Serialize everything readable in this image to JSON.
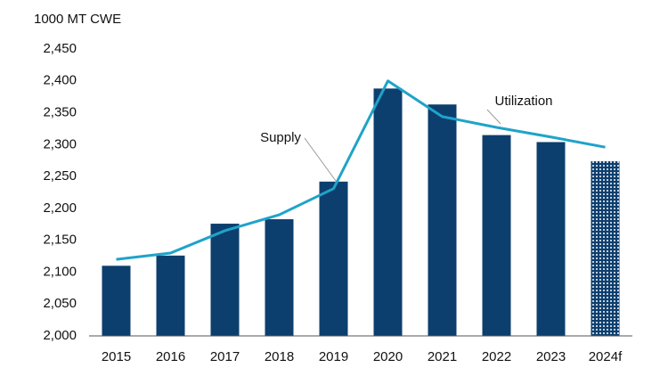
{
  "chart_data": {
    "type": "bar-line",
    "y_label": "1000 MT CWE",
    "categories": [
      "2015",
      "2016",
      "2017",
      "2018",
      "2019",
      "2020",
      "2021",
      "2022",
      "2023",
      "2024f"
    ],
    "series": [
      {
        "name": "Supply",
        "type": "bar",
        "color": "#0d3f6e",
        "values": [
          2110,
          2126,
          2176,
          2183,
          2242,
          2388,
          2363,
          2315,
          2304,
          2274
        ],
        "patterned": [
          false,
          false,
          false,
          false,
          false,
          false,
          false,
          false,
          false,
          true
        ]
      },
      {
        "name": "Utilization",
        "type": "line",
        "color": "#1fa3c9",
        "values": [
          2120,
          2130,
          2165,
          2190,
          2231,
          2400,
          2344,
          2327,
          2312,
          2296
        ]
      }
    ],
    "ylim": [
      2000,
      2450
    ],
    "yticks": [
      {
        "value": 2000,
        "label": "2,000"
      },
      {
        "value": 2050,
        "label": "2,050"
      },
      {
        "value": 2100,
        "label": "2,100"
      },
      {
        "value": 2150,
        "label": "2,150"
      },
      {
        "value": 2200,
        "label": "2,200"
      },
      {
        "value": 2250,
        "label": "2,250"
      },
      {
        "value": 2300,
        "label": "2,300"
      },
      {
        "value": 2350,
        "label": "2,350"
      },
      {
        "value": 2400,
        "label": "2,400"
      },
      {
        "value": 2450,
        "label": "2,450"
      }
    ],
    "grid": false
  }
}
